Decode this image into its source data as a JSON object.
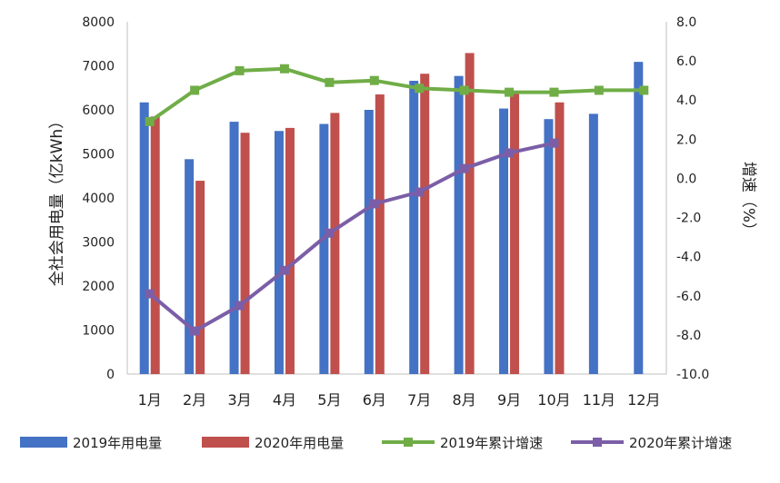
{
  "chart_data": {
    "type": "bar+line",
    "categories": [
      "1月",
      "2月",
      "3月",
      "4月",
      "5月",
      "6月",
      "7月",
      "8月",
      "9月",
      "10月",
      "11月",
      "12月"
    ],
    "ylabel_left": "全社会用电量（亿kWh）",
    "ylabel_right": "增速（%）",
    "ylim_left": [
      0,
      8000
    ],
    "ylim_right": [
      -10.0,
      8.0
    ],
    "yticks_left": [
      "0",
      "1000",
      "2000",
      "3000",
      "4000",
      "5000",
      "6000",
      "7000",
      "8000"
    ],
    "yticks_right": [
      "-10.0",
      "-8.0",
      "-6.0",
      "-4.0",
      "-2.0",
      "0.0",
      "2.0",
      "4.0",
      "6.0",
      "8.0"
    ],
    "bar_series": [
      {
        "name": "2019年用电量",
        "color": "#4472C4",
        "values": [
          6170,
          4880,
          5730,
          5520,
          5680,
          6000,
          6660,
          6770,
          6030,
          5790,
          5910,
          7090
        ]
      },
      {
        "name": "2020年用电量",
        "color": "#C0504D",
        "values": [
          5850,
          4390,
          5480,
          5590,
          5930,
          6350,
          6820,
          7290,
          6390,
          6170,
          null,
          null
        ]
      }
    ],
    "line_series": [
      {
        "name": "2019年累计增速",
        "color": "#70AD47",
        "values": [
          2.9,
          4.5,
          5.5,
          5.6,
          4.9,
          5.0,
          4.6,
          4.5,
          4.4,
          4.4,
          4.5,
          4.5
        ]
      },
      {
        "name": "2020年累计增速",
        "color": "#7B5EA7",
        "values": [
          -5.9,
          -7.8,
          -6.5,
          -4.7,
          -2.8,
          -1.3,
          -0.7,
          0.5,
          1.3,
          1.8,
          null,
          null
        ]
      }
    ],
    "legend_position": "bottom"
  }
}
